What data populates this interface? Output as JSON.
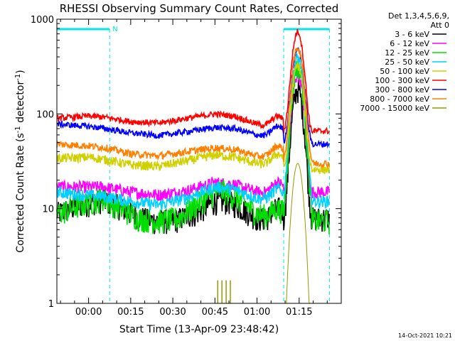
{
  "chart_data": {
    "type": "line",
    "title": "RHESSI Observing Summary Count Rates, Corrected",
    "xlabel": "Start Time (13-Apr-09 23:48:42)",
    "ylabel_main": "Corrected Count Rate (s",
    "ylabel_sup1": "-1",
    "ylabel_mid": " detector",
    "ylabel_sup2": "-1",
    "ylabel_end": ")",
    "y_scale": "log",
    "ylim": [
      1,
      1000
    ],
    "xlim_minutes": [
      -11.3,
      90
    ],
    "y_ticks": [
      {
        "v": 1,
        "label": "1"
      },
      {
        "v": 10,
        "label": "10"
      },
      {
        "v": 100,
        "label": "100"
      },
      {
        "v": 1000,
        "label": "1000"
      }
    ],
    "x_ticks": [
      {
        "min": 0,
        "label": "00:00"
      },
      {
        "min": 15,
        "label": "00:15"
      },
      {
        "min": 30,
        "label": "00:30"
      },
      {
        "min": 45,
        "label": "00:45"
      },
      {
        "min": 60,
        "label": "01:00"
      },
      {
        "min": 75,
        "label": "01:15"
      }
    ],
    "legend_header": [
      "Det 1,3,4,5,6,9,",
      "Att 0"
    ],
    "legend_position": "right",
    "timestamp": "14-Oct-2021 10:21",
    "night_label": "N",
    "flag_color": "#00e5e5",
    "flag_segments_minutes": [
      [
        -11.3,
        7.5
      ],
      [
        69.5,
        85.8
      ]
    ],
    "series": [
      {
        "name": "3 - 6 keV",
        "color": "#000000",
        "base": [
          [
            -11,
            9
          ],
          [
            -3,
            11
          ],
          [
            5,
            12.5
          ],
          [
            10,
            11
          ],
          [
            15,
            9
          ],
          [
            22,
            7.5
          ],
          [
            30,
            7.5
          ],
          [
            38,
            9
          ],
          [
            45,
            12
          ],
          [
            50,
            12
          ],
          [
            55,
            10
          ],
          [
            60,
            8
          ],
          [
            66,
            7.5
          ]
        ],
        "peak": 175,
        "tail": 8,
        "noise": 0.12
      },
      {
        "name": "6 - 12 keV",
        "color": "#ff00ff",
        "base": [
          [
            -11,
            17
          ],
          [
            0,
            17
          ],
          [
            5,
            17
          ],
          [
            15,
            15
          ],
          [
            25,
            14
          ],
          [
            35,
            15.5
          ],
          [
            45,
            19
          ],
          [
            52,
            18
          ],
          [
            60,
            15
          ],
          [
            67,
            14
          ]
        ],
        "peak": 250,
        "tail": 15,
        "noise": 0.06
      },
      {
        "name": "12 - 25 keV",
        "color": "#00dd00",
        "base": [
          [
            -11,
            9
          ],
          [
            -3,
            11
          ],
          [
            5,
            13
          ],
          [
            12,
            10
          ],
          [
            18,
            8
          ],
          [
            25,
            7.5
          ],
          [
            32,
            8
          ],
          [
            40,
            12
          ],
          [
            47,
            16
          ],
          [
            53,
            13
          ],
          [
            60,
            9
          ],
          [
            67,
            7.5
          ]
        ],
        "peak": 320,
        "tail": 7.5,
        "noise": 0.12
      },
      {
        "name": "25 - 50 keV",
        "color": "#00d0ff",
        "base": [
          [
            -11,
            15
          ],
          [
            -2,
            14
          ],
          [
            5,
            13.5
          ],
          [
            15,
            12
          ],
          [
            25,
            11
          ],
          [
            35,
            13
          ],
          [
            45,
            17
          ],
          [
            52,
            16
          ],
          [
            60,
            13
          ],
          [
            67,
            12
          ]
        ],
        "peak": 380,
        "tail": 12,
        "noise": 0.06
      },
      {
        "name": "50 - 100 keV",
        "color": "#d0d000",
        "base": [
          [
            -11,
            34
          ],
          [
            0,
            35
          ],
          [
            6,
            33
          ],
          [
            15,
            29
          ],
          [
            25,
            28
          ],
          [
            35,
            32
          ],
          [
            45,
            37
          ],
          [
            52,
            35
          ],
          [
            60,
            30
          ],
          [
            67,
            28
          ]
        ],
        "peak": 300,
        "tail": 26,
        "noise": 0.045
      },
      {
        "name": "100 - 300 keV",
        "color": "#ff0000",
        "base": [
          [
            -11,
            90
          ],
          [
            0,
            95
          ],
          [
            6,
            92
          ],
          [
            15,
            83
          ],
          [
            25,
            80
          ],
          [
            35,
            90
          ],
          [
            45,
            100
          ],
          [
            52,
            95
          ],
          [
            60,
            78
          ],
          [
            67,
            70
          ]
        ],
        "peak": 680,
        "tail": 66,
        "noise": 0.03
      },
      {
        "name": "300 - 800 keV",
        "color": "#0000ff",
        "base": [
          [
            -11,
            78
          ],
          [
            0,
            74
          ],
          [
            6,
            70
          ],
          [
            15,
            63
          ],
          [
            25,
            59
          ],
          [
            35,
            65
          ],
          [
            45,
            72
          ],
          [
            52,
            70
          ],
          [
            60,
            60
          ],
          [
            67,
            55
          ]
        ],
        "peak": 440,
        "tail": 48,
        "noise": 0.03
      },
      {
        "name": "800 - 7000 keV",
        "color": "#ff8000",
        "base": [
          [
            -11,
            48
          ],
          [
            0,
            46
          ],
          [
            6,
            44
          ],
          [
            15,
            38
          ],
          [
            25,
            36
          ],
          [
            35,
            40
          ],
          [
            45,
            44
          ],
          [
            52,
            42
          ],
          [
            60,
            36
          ],
          [
            67,
            34
          ]
        ],
        "peak": 470,
        "tail": 30,
        "noise": 0.035
      },
      {
        "name": "7000 - 15000 keV",
        "color": "#999900",
        "base": [],
        "peak": 30,
        "tail": 0,
        "noise": 0,
        "spikes_minutes": [
          46,
          47.5,
          49,
          50.5
        ]
      }
    ],
    "flare_peak_minutes": 74.5
  }
}
